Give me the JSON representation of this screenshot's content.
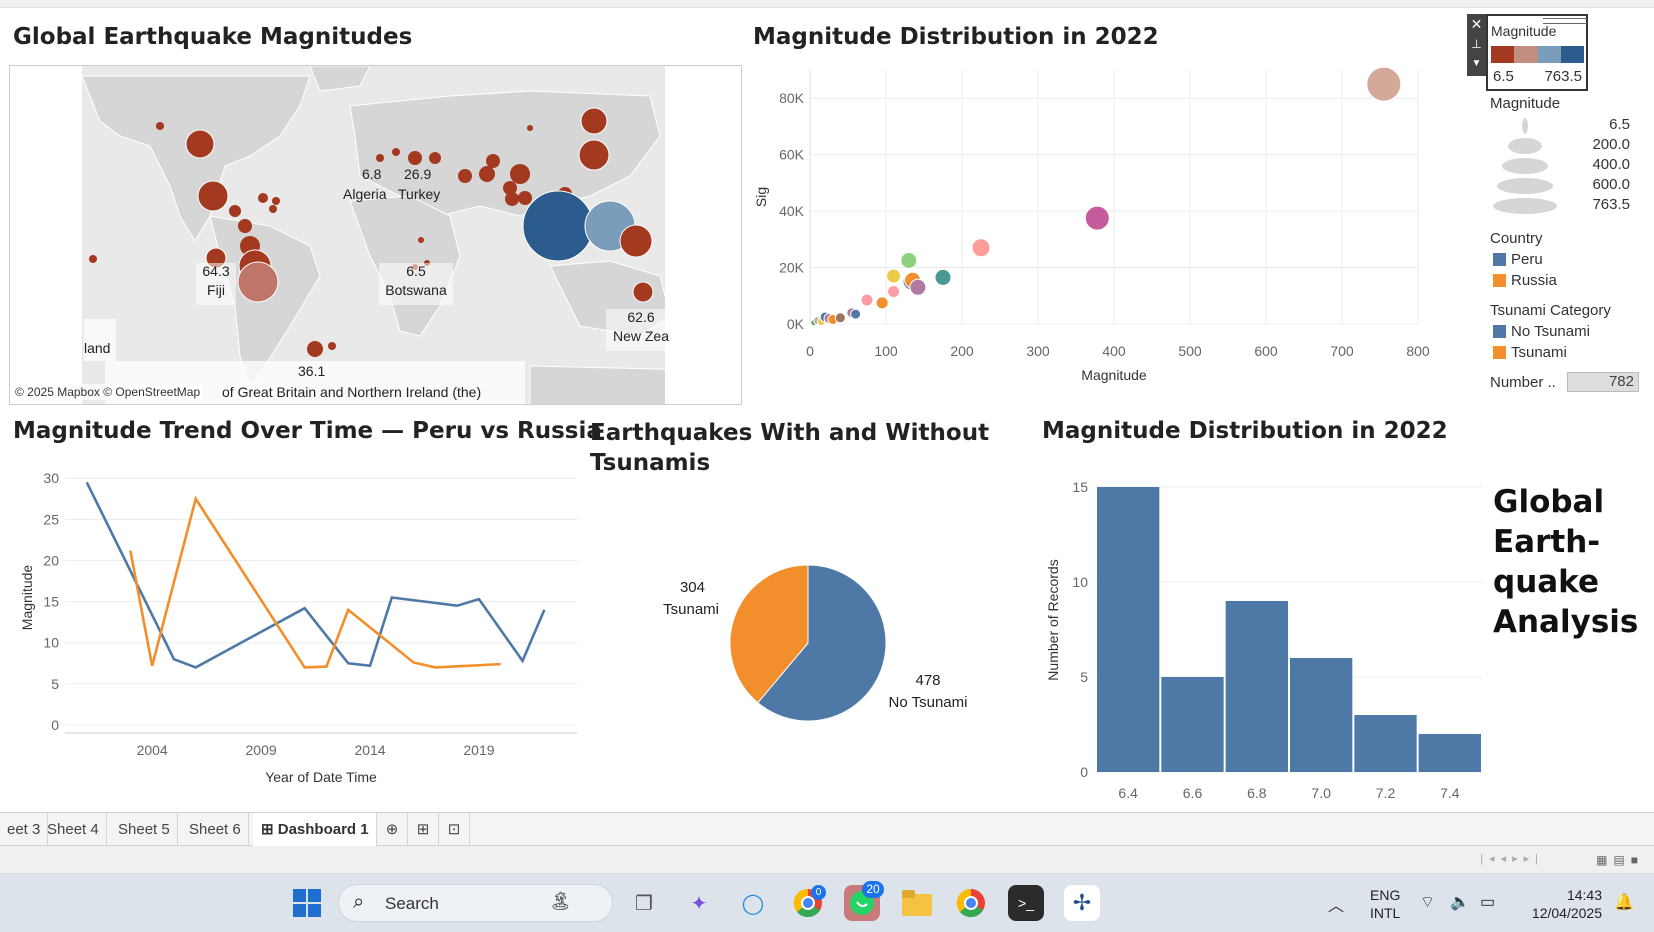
{
  "titles": {
    "map": "Global Earthquake Magnitudes",
    "scatter": "Magnitude Distribution in 2022",
    "line": "Magnitude Trend Over Time — Peru vs Russia",
    "pie": "Earthquakes With and Without Tsunamis",
    "hist": "Magnitude Distribution in 2022",
    "side": "Global Earth-quake Analysis"
  },
  "map": {
    "attribution": "© 2025 Mapbox © OpenStreetMap",
    "labels": [
      {
        "value": "6.8",
        "name": "Algeria"
      },
      {
        "value": "26.9",
        "name": "Turkey"
      },
      {
        "value": "64.3",
        "name": "Fiji"
      },
      {
        "value": "6.5",
        "name": "Botswana"
      },
      {
        "value": "62.6",
        "name": "New Zea"
      },
      {
        "value": "36.1",
        "name": "of Great Britain and Northern Ireland (the)"
      },
      {
        "value": "",
        "name": "land"
      }
    ]
  },
  "legend": {
    "color_title": "Magnitude",
    "color_min": "6.5",
    "color_max": "763.5",
    "colors": [
      "#a3391f",
      "#c28e7f",
      "#7a9dbc",
      "#2c5b8e"
    ],
    "size_title": "Magnitude",
    "size_values": [
      "6.5",
      "200.0",
      "400.0",
      "600.0",
      "763.5"
    ],
    "country_title": "Country",
    "countries": [
      {
        "name": "Peru",
        "color": "#4e79a7"
      },
      {
        "name": "Russia",
        "color": "#f28e2b"
      }
    ],
    "tsunami_title": "Tsunami Category",
    "tsunami": [
      {
        "name": "No Tsunami",
        "color": "#4e79a7"
      },
      {
        "name": "Tsunami",
        "color": "#f28e2b"
      }
    ],
    "number_label": "Number ..",
    "number_value": "782"
  },
  "chart_data": [
    {
      "type": "scatter",
      "title": "Magnitude Distribution in 2022",
      "xlabel": "Magnitude",
      "ylabel": "Sig",
      "xlim": [
        0,
        800
      ],
      "ylim": [
        0,
        90000
      ],
      "xticks": [
        "0",
        "100",
        "200",
        "300",
        "400",
        "500",
        "600",
        "700",
        "800"
      ],
      "yticks": [
        "0K",
        "20K",
        "40K",
        "60K",
        "80K"
      ],
      "points": [
        {
          "x": 5,
          "y": 500,
          "color": "#59a14f",
          "r": 3
        },
        {
          "x": 10,
          "y": 1200,
          "color": "#bab0ac",
          "r": 4
        },
        {
          "x": 15,
          "y": 900,
          "color": "#edc948",
          "r": 4
        },
        {
          "x": 20,
          "y": 2500,
          "color": "#4e79a7",
          "r": 5
        },
        {
          "x": 25,
          "y": 2000,
          "color": "#b07aa1",
          "r": 5
        },
        {
          "x": 30,
          "y": 1600,
          "color": "#f28e2b",
          "r": 5
        },
        {
          "x": 40,
          "y": 2200,
          "color": "#9c755f",
          "r": 5
        },
        {
          "x": 55,
          "y": 4000,
          "color": "#b07aa1",
          "r": 5
        },
        {
          "x": 60,
          "y": 3500,
          "color": "#4e79a7",
          "r": 5
        },
        {
          "x": 75,
          "y": 8500,
          "color": "#ff9da7",
          "r": 6
        },
        {
          "x": 95,
          "y": 7500,
          "color": "#f28e2b",
          "r": 6
        },
        {
          "x": 110,
          "y": 17000,
          "color": "#edc948",
          "r": 7
        },
        {
          "x": 110,
          "y": 11500,
          "color": "#ff9da7",
          "r": 6
        },
        {
          "x": 130,
          "y": 22500,
          "color": "#8cd17d",
          "r": 8
        },
        {
          "x": 133,
          "y": 15000,
          "color": "#4e79a7",
          "r": 8
        },
        {
          "x": 135,
          "y": 15500,
          "color": "#f28e2b",
          "r": 8
        },
        {
          "x": 142,
          "y": 13000,
          "color": "#b07aa1",
          "r": 8
        },
        {
          "x": 175,
          "y": 16500,
          "color": "#499894",
          "r": 8
        },
        {
          "x": 225,
          "y": 27000,
          "color": "#ff9d9a",
          "r": 9
        },
        {
          "x": 378,
          "y": 37500,
          "color": "#c45b9d",
          "r": 12
        },
        {
          "x": 755,
          "y": 85000,
          "color": "#d4a99a",
          "r": 17
        }
      ]
    },
    {
      "type": "line",
      "title": "Magnitude Trend Over Time — Peru vs Russia",
      "xlabel": "Year of Date Time",
      "ylabel": "Magnitude",
      "xlim": [
        2000,
        2023.5
      ],
      "ylim": [
        0,
        31
      ],
      "xticks": [
        "2004",
        "2009",
        "2014",
        "2019"
      ],
      "yticks": [
        "0",
        "5",
        "10",
        "15",
        "20",
        "25",
        "30"
      ],
      "series": [
        {
          "name": "Peru",
          "color": "#4e79a7",
          "x": [
            2001,
            2005,
            2006,
            2011,
            2013,
            2014,
            2015,
            2018,
            2019,
            2021,
            2022
          ],
          "y": [
            29.5,
            8.0,
            7.0,
            14.2,
            7.5,
            7.2,
            15.5,
            14.5,
            15.3,
            7.8,
            14.0
          ]
        },
        {
          "name": "Russia",
          "color": "#f28e2b",
          "x": [
            2003,
            2004,
            2006,
            2011,
            2012,
            2013,
            2016,
            2017,
            2020
          ],
          "y": [
            21.2,
            7.2,
            27.5,
            7.0,
            7.1,
            14.0,
            7.6,
            7.0,
            7.4
          ]
        }
      ]
    },
    {
      "type": "pie",
      "title": "Earthquakes With and Without Tsunamis",
      "slices": [
        {
          "name": "No Tsunami",
          "value": 478,
          "color": "#4e79a7"
        },
        {
          "name": "Tsunami",
          "value": 304,
          "color": "#f28e2b"
        }
      ]
    },
    {
      "type": "bar",
      "title": "Magnitude Distribution in 2022",
      "xlabel": "",
      "ylabel": "Number of Records",
      "categories": [
        "6.4",
        "6.6",
        "6.8",
        "7.0",
        "7.2",
        "7.4"
      ],
      "values": [
        15,
        5,
        9,
        6,
        3,
        2
      ],
      "ylim": [
        0,
        16
      ],
      "yticks": [
        "0",
        "5",
        "10",
        "15"
      ],
      "color": "#4e79a7"
    }
  ],
  "tabs": [
    "eet 3",
    "Sheet 4",
    "Sheet 5",
    "Sheet 6",
    "Dashboard 1"
  ],
  "taskbar": {
    "search": "Search",
    "lang1": "ENG",
    "lang2": "INTL",
    "time": "14:43",
    "date": "12/04/2025",
    "whatsapp_badge": "20",
    "edge_badge": "0"
  }
}
